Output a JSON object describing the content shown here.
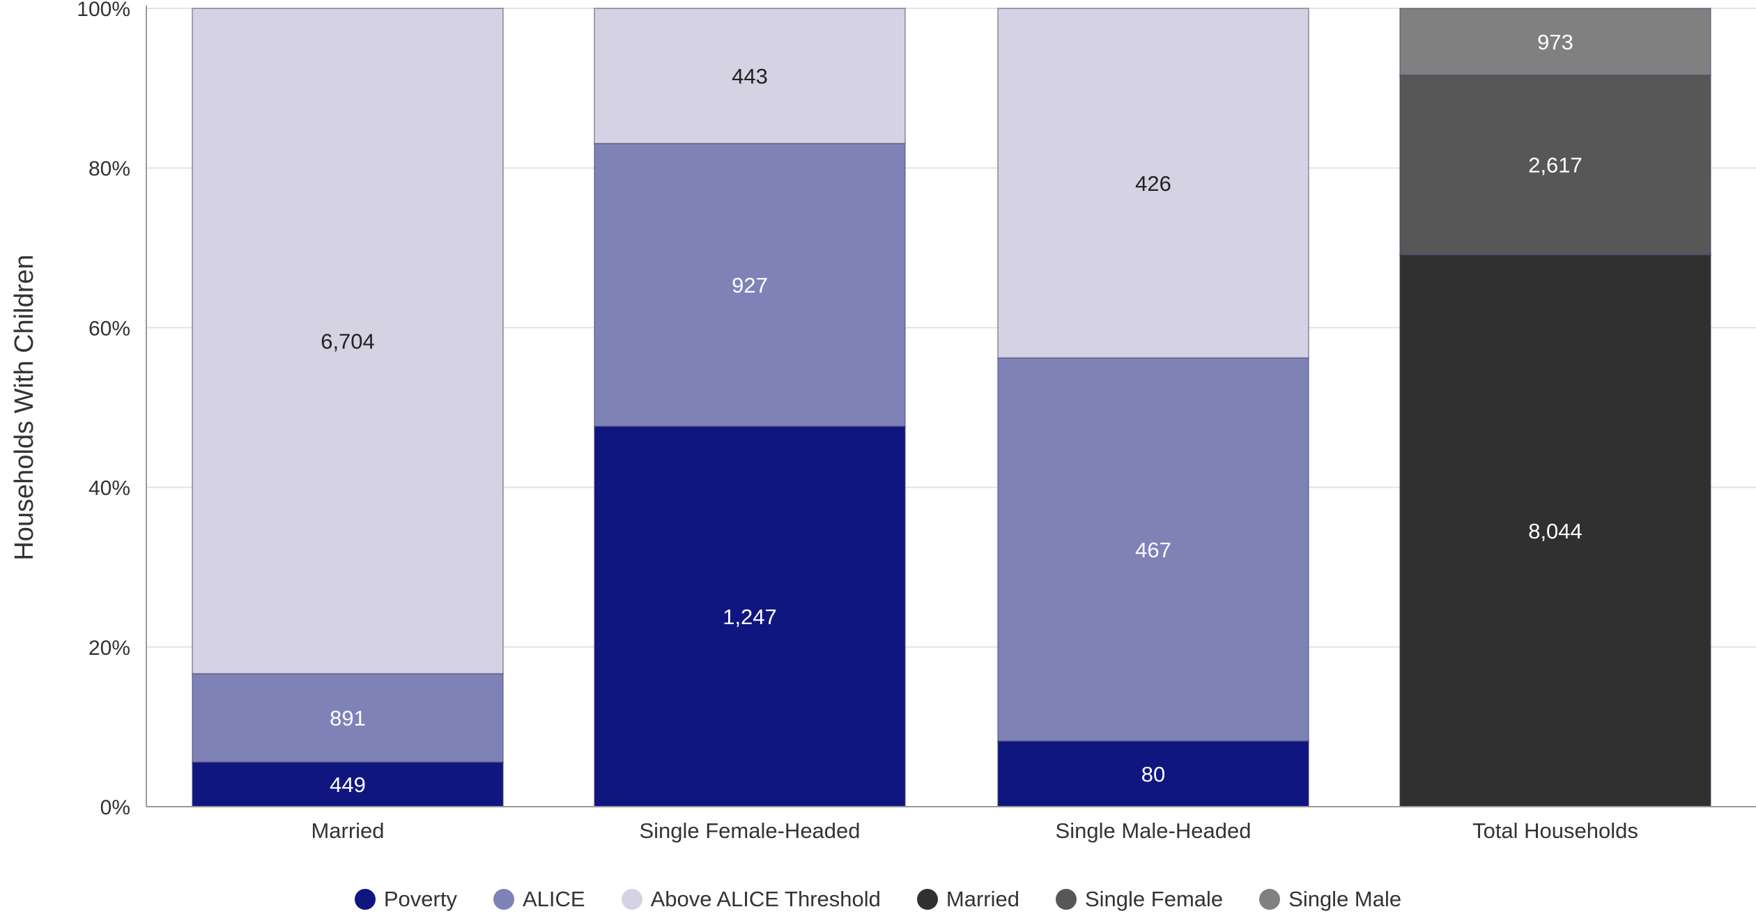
{
  "chart_data": {
    "type": "bar",
    "stacked": true,
    "normalized": true,
    "ylabel": "Households With Children",
    "yticks": [
      "0%",
      "20%",
      "40%",
      "60%",
      "80%",
      "100%"
    ],
    "ylim": [
      0,
      100
    ],
    "grid": true,
    "legend_position": "bottom",
    "categories": [
      "Married",
      "Single Female-Headed",
      "Single Male-Headed",
      "Total Households"
    ],
    "series": [
      {
        "name": "Poverty",
        "color": "#10167f",
        "values": [
          449,
          1247,
          80,
          null
        ],
        "label_color": "#ffffff"
      },
      {
        "name": "ALICE",
        "color": "#7e82b7",
        "values": [
          891,
          927,
          467,
          null
        ],
        "label_color": "#ffffff"
      },
      {
        "name": "Above ALICE Threshold",
        "color": "#d4d2e3",
        "values": [
          6704,
          443,
          426,
          null
        ],
        "label_color": "#222222"
      },
      {
        "name": "Married",
        "color": "#303030",
        "values": [
          null,
          null,
          null,
          8044
        ],
        "label_color": "#ffffff"
      },
      {
        "name": "Single Female",
        "color": "#575757",
        "values": [
          null,
          null,
          null,
          2617
        ],
        "label_color": "#ffffff"
      },
      {
        "name": "Single Male",
        "color": "#808080",
        "values": [
          null,
          null,
          null,
          973
        ],
        "label_color": "#ffffff"
      }
    ],
    "value_labels": [
      [
        "449",
        "1,247",
        "80",
        ""
      ],
      [
        "891",
        "927",
        "467",
        ""
      ],
      [
        "6,704",
        "443",
        "426",
        ""
      ],
      [
        "",
        "",
        "",
        "8,044"
      ],
      [
        "",
        "",
        "",
        "2,617"
      ],
      [
        "",
        "",
        "",
        "973"
      ]
    ]
  }
}
